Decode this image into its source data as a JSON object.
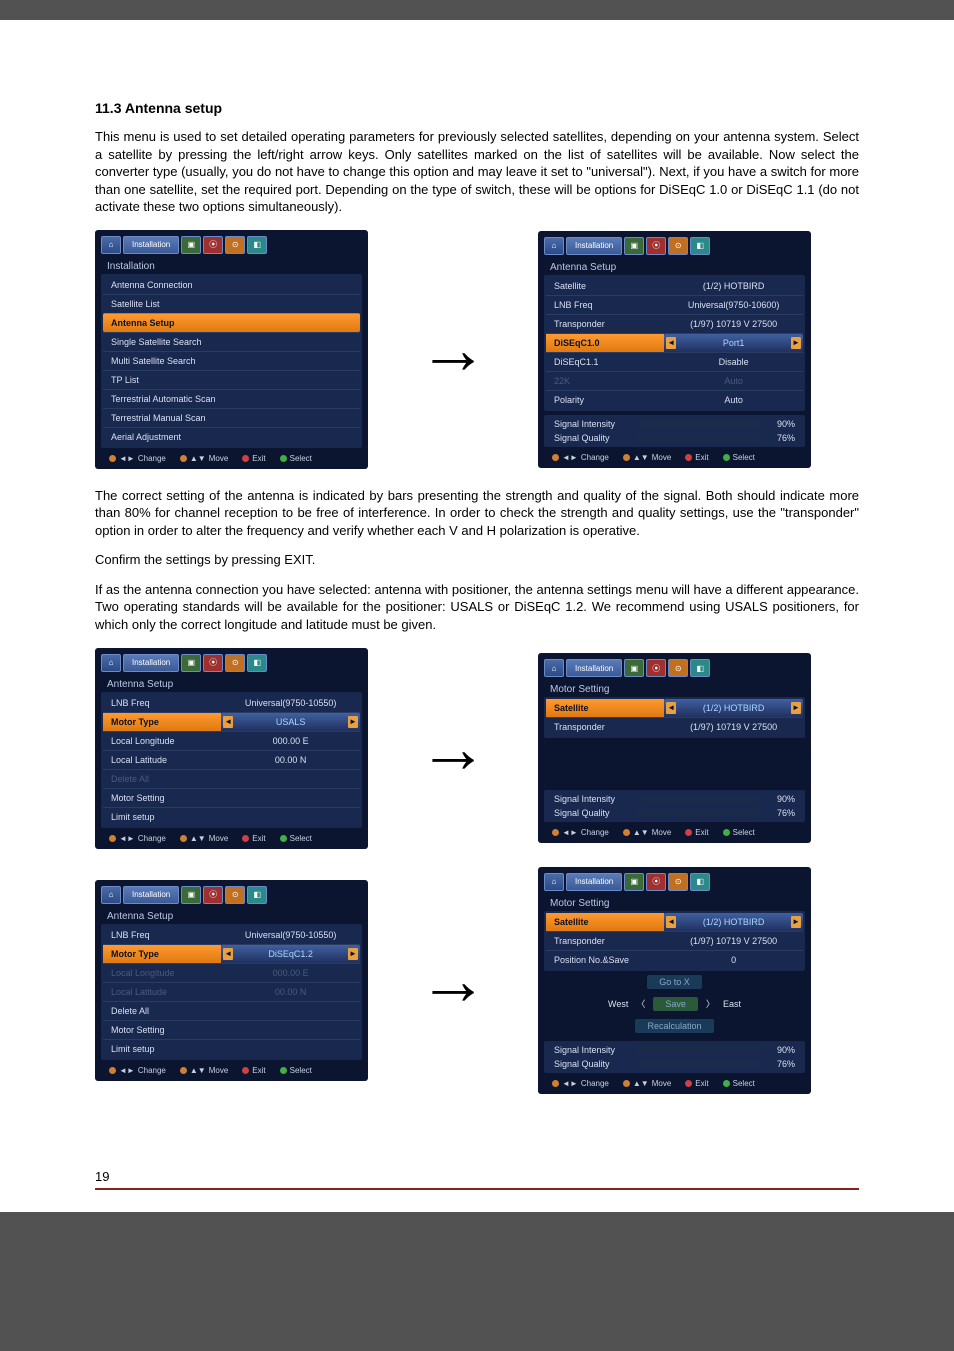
{
  "section_title": "11.3 Antenna setup",
  "para1": "This menu is used to set detailed operating parameters for previously selected satellites, depending on your antenna system. Select a satellite by pressing the left/right arrow keys. Only satellites marked on the list of satellites will be available. Now select the converter type (usually, you do not have to change this option and may leave it set to \"universal\"). Next, if you have a switch for more than one satellite, set the required port. Depending on the type of switch, these will be options for DiSEqC 1.0 or DiSEqC 1.1 (do not activate these two options simultaneously).",
  "para2": "The correct setting of the antenna is indicated by bars presenting the strength and quality of the signal. Both should indicate more than 80% for channel reception to be free of interference. In order to check the strength and quality settings, use the \"transponder\" option in order to alter the frequency and verify whether each V and H polarization is operative.",
  "para3": "Confirm the settings by pressing EXIT.",
  "para4": "If as the antenna connection you have selected: antenna with positioner, the antenna settings menu will have a different appearance. Two operating standards will be available for the positioner: USALS or DiSEqC 1.2. We recommend using USALS positioners, for which only the correct longitude and latitude must be given.",
  "page_number": "19",
  "header": {
    "tab_label": "Installation"
  },
  "footer": {
    "change": "Change",
    "move": "Move",
    "exit": "Exit",
    "select": "Select",
    "colors": {
      "lr": "#d08030",
      "ud": "#d08030",
      "exit": "#d04040",
      "select": "#40b040"
    }
  },
  "installation_menu": {
    "title": "Installation",
    "items": [
      {
        "label": "Antenna Connection",
        "sel": false
      },
      {
        "label": "Satellite List",
        "sel": false
      },
      {
        "label": "Antenna Setup",
        "sel": true
      },
      {
        "label": "Single Satellite Search",
        "sel": false
      },
      {
        "label": "Multi Satellite Search",
        "sel": false
      },
      {
        "label": "TP List",
        "sel": false
      },
      {
        "label": "Terrestrial Automatic Scan",
        "sel": false
      },
      {
        "label": "Terrestrial Manual Scan",
        "sel": false
      },
      {
        "label": "Aerial Adjustment",
        "sel": false
      }
    ]
  },
  "antenna_setup_kv": {
    "title": "Antenna Setup",
    "rows": [
      {
        "k": "Satellite",
        "v": "(1/2) HOTBIRD"
      },
      {
        "k": "LNB Freq",
        "v": "Universal(9750-10600)"
      },
      {
        "k": "Transponder",
        "v": "(1/97) 10719 V 27500"
      },
      {
        "k": "DiSEqC1.0",
        "v": "Port1",
        "sel": true
      },
      {
        "k": "DiSEqC1.1",
        "v": "Disable"
      },
      {
        "k": "22K",
        "v": "Auto",
        "dim": true
      },
      {
        "k": "Polarity",
        "v": "Auto"
      }
    ],
    "sig_intensity": {
      "label": "Signal Intensity",
      "pct": 90,
      "color": "#30c030"
    },
    "sig_quality": {
      "label": "Signal Quality",
      "pct": 76,
      "color": "#30a0c0"
    }
  },
  "usals_setup": {
    "title": "Antenna Setup",
    "rows": [
      {
        "k": "LNB Freq",
        "v": "Universal(9750-10550)"
      },
      {
        "k": "Motor Type",
        "v": "USALS",
        "sel": true
      },
      {
        "k": "Local Longitude",
        "v": "000.00 E"
      },
      {
        "k": "Local Latitude",
        "v": "00.00 N"
      },
      {
        "k": "Delete All",
        "v": "",
        "dim": true
      },
      {
        "k": "Motor Setting",
        "v": ""
      },
      {
        "k": "Limit setup",
        "v": ""
      }
    ]
  },
  "motor_setting_usals": {
    "title": "Motor Setting",
    "rows": [
      {
        "k": "Satellite",
        "v": "(1/2) HOTBIRD",
        "sel": true
      },
      {
        "k": "Transponder",
        "v": "(1/97) 10719 V 27500"
      }
    ],
    "sig_intensity": {
      "label": "Signal Intensity",
      "pct": 90,
      "color": "#30c030"
    },
    "sig_quality": {
      "label": "Signal Quality",
      "pct": 76,
      "color": "#30a0c0"
    }
  },
  "diseqc12_setup": {
    "title": "Antenna Setup",
    "rows": [
      {
        "k": "LNB Freq",
        "v": "Universal(9750-10550)"
      },
      {
        "k": "Motor Type",
        "v": "DiSEqC1.2",
        "sel": true
      },
      {
        "k": "Local Longitude",
        "v": "000.00 E",
        "dim": true
      },
      {
        "k": "Local Latitude",
        "v": "00.00 N",
        "dim": true
      },
      {
        "k": "Delete All",
        "v": ""
      },
      {
        "k": "Motor Setting",
        "v": ""
      },
      {
        "k": "Limit setup",
        "v": ""
      }
    ]
  },
  "motor_setting_diseqc": {
    "title": "Motor Setting",
    "rows": [
      {
        "k": "Satellite",
        "v": "(1/2) HOTBIRD",
        "sel": true
      },
      {
        "k": "Transponder",
        "v": "(1/97) 10719 V 27500"
      },
      {
        "k": "Position No.&Save",
        "v": "0"
      }
    ],
    "goto": "Go to X",
    "west": "West",
    "east": "East",
    "save": "Save",
    "recalc": "Recalculation",
    "sig_intensity": {
      "label": "Signal Intensity",
      "pct": 90,
      "color": "#30c030"
    },
    "sig_quality": {
      "label": "Signal Quality",
      "pct": 76,
      "color": "#30a0c0"
    }
  }
}
